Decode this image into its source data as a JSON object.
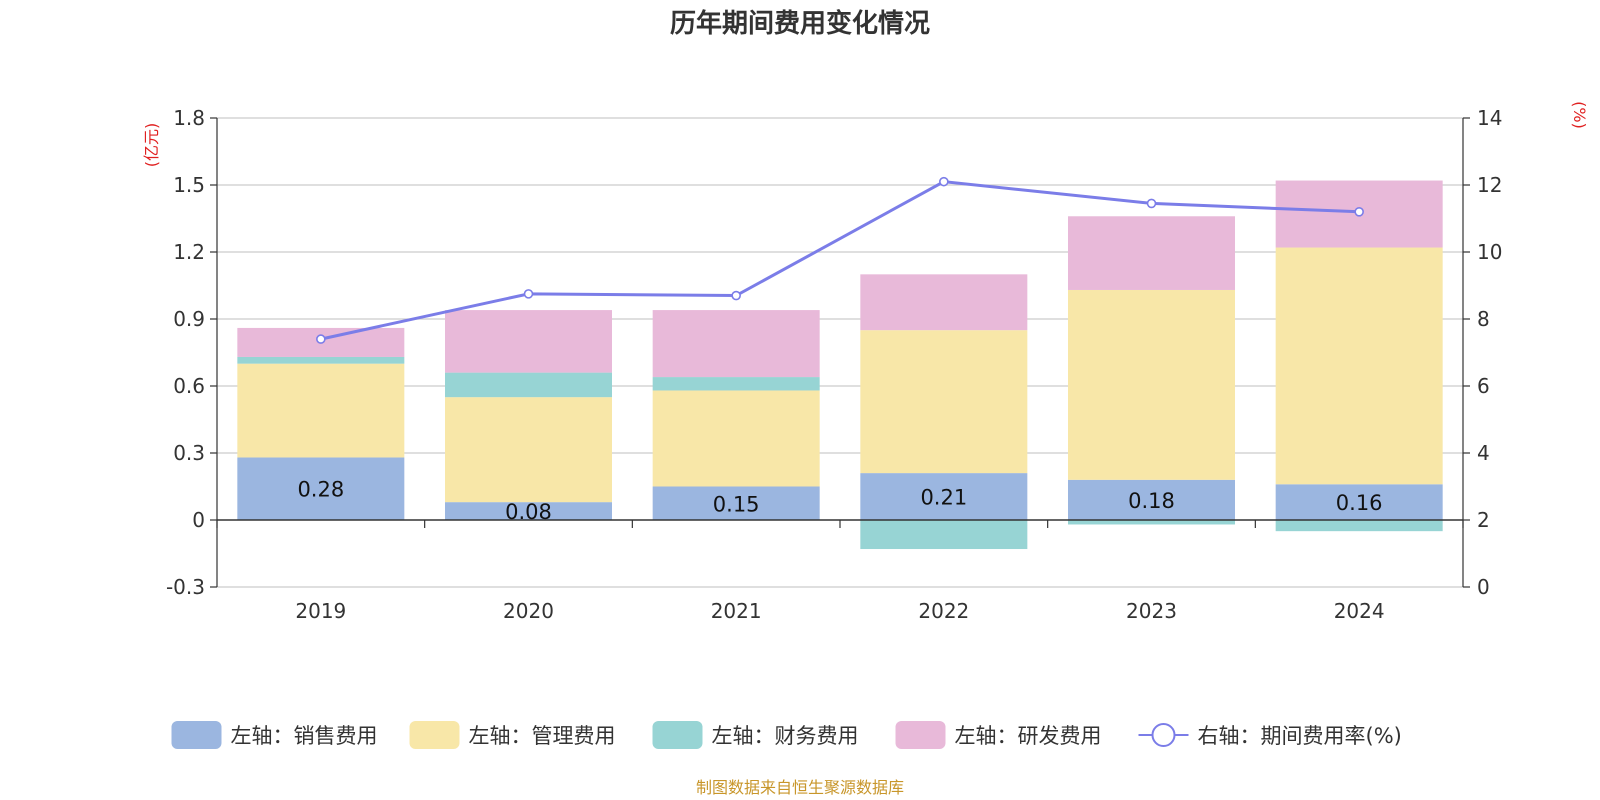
{
  "chart_data": {
    "type": "bar",
    "title": "历年期间费用变化情况",
    "categories": [
      "2019",
      "2020",
      "2021",
      "2022",
      "2023",
      "2024"
    ],
    "left_axis": {
      "unit_label": "(亿元)",
      "ylim": [
        -0.3,
        1.8
      ],
      "ticks": [
        "-0.3",
        "0",
        "0.3",
        "0.6",
        "0.9",
        "1.2",
        "1.5",
        "1.8"
      ]
    },
    "right_axis": {
      "unit_label": "(%)",
      "ylim": [
        0,
        14
      ],
      "ticks": [
        "0",
        "2",
        "4",
        "6",
        "8",
        "10",
        "12",
        "14"
      ]
    },
    "series": [
      {
        "name": "左轴：销售费用",
        "axis": "left",
        "kind": "bar",
        "color": "#9bb6e0",
        "values": [
          0.28,
          0.08,
          0.15,
          0.21,
          0.18,
          0.16
        ],
        "labels": [
          "0.28",
          "0.08",
          "0.15",
          "0.21",
          "0.18",
          "0.16"
        ]
      },
      {
        "name": "左轴：管理费用",
        "axis": "left",
        "kind": "bar",
        "color": "#f8e7a8",
        "values": [
          0.42,
          0.47,
          0.43,
          0.64,
          0.85,
          1.06
        ]
      },
      {
        "name": "左轴：财务费用",
        "axis": "left",
        "kind": "bar",
        "color": "#97d4d4",
        "values": [
          0.03,
          0.11,
          0.06,
          -0.13,
          -0.02,
          -0.05
        ]
      },
      {
        "name": "左轴：研发费用",
        "axis": "left",
        "kind": "bar",
        "color": "#e8b9d9",
        "values": [
          0.13,
          0.28,
          0.3,
          0.25,
          0.33,
          0.3
        ]
      },
      {
        "name": "右轴：期间费用率(%)",
        "axis": "right",
        "kind": "line",
        "color": "#7b7de8",
        "values": [
          7.4,
          8.75,
          8.7,
          12.1,
          11.45,
          11.2
        ]
      }
    ],
    "grid": true,
    "legend_position": "bottom"
  },
  "source_note": "制图数据来自恒生聚源数据库"
}
